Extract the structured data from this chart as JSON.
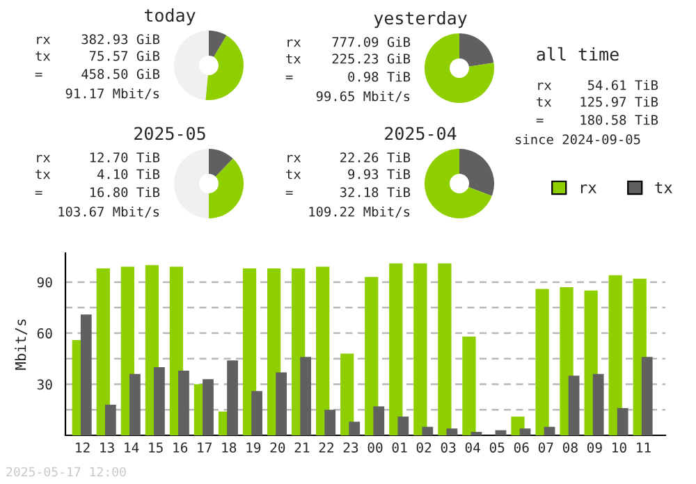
{
  "chart_data": [
    {
      "type": "donut",
      "title": "today",
      "categories": [
        null,
        null,
        null
      ],
      "values": [
        8.5,
        43.0,
        48.5
      ],
      "colors": [
        "#606060",
        "#8fcf00",
        "#f0f0f0"
      ],
      "annotations": [
        "rx",
        "382.93 GiB",
        "tx",
        "75.57 GiB",
        "=",
        "458.50 GiB",
        "91.17 Mbit/s"
      ]
    },
    {
      "type": "donut",
      "title": "yesterday",
      "categories": [
        null,
        null
      ],
      "values": [
        22.5,
        77.5
      ],
      "colors": [
        "#606060",
        "#8fcf00"
      ],
      "annotations": [
        "rx",
        "777.09 GiB",
        "tx",
        "225.23 GiB",
        "=",
        "0.98 TiB",
        "99.65 Mbit/s"
      ]
    },
    {
      "type": "other",
      "title": "all time",
      "annotations": [
        "rx",
        "54.61 TiB",
        "tx",
        "125.97 TiB",
        "=",
        "180.58 TiB",
        "since 2024-09-05"
      ]
    },
    {
      "type": "donut",
      "title": "2025-05",
      "categories": [
        null,
        null,
        null
      ],
      "values": [
        12.2,
        37.8,
        50.0
      ],
      "colors": [
        "#606060",
        "#8fcf00",
        "#f0f0f0"
      ],
      "annotations": [
        "rx",
        "12.70 TiB",
        "tx",
        "4.10 TiB",
        "=",
        "16.80 TiB",
        "103.67 Mbit/s"
      ]
    },
    {
      "type": "donut",
      "title": "2025-04",
      "categories": [
        null,
        null
      ],
      "values": [
        30.8,
        69.2
      ],
      "colors": [
        "#606060",
        "#8fcf00"
      ],
      "annotations": [
        "rx",
        "22.26 TiB",
        "tx",
        "9.93 TiB",
        "=",
        "32.18 TiB",
        "109.22 Mbit/s"
      ]
    },
    {
      "type": "bar",
      "ylabel": "Mbit/s",
      "categories": [
        "12",
        "13",
        "14",
        "15",
        "16",
        "17",
        "18",
        "19",
        "20",
        "21",
        "22",
        "23",
        "00",
        "01",
        "02",
        "03",
        "04",
        "05",
        "06",
        "07",
        "08",
        "09",
        "10",
        "11"
      ],
      "series": [
        {
          "name": "rx",
          "color": "#8fcf00",
          "values": [
            56,
            98,
            99,
            100,
            99,
            30,
            14,
            98,
            98,
            98,
            99,
            48,
            93,
            101,
            101,
            101,
            58,
            0,
            11,
            86,
            87,
            85,
            94,
            92
          ]
        },
        {
          "name": "tx",
          "color": "#606060",
          "values": [
            71,
            18,
            36,
            40,
            38,
            33,
            44,
            26,
            37,
            46,
            15,
            8,
            17,
            11,
            5,
            4,
            2,
            3,
            4,
            5,
            35,
            36,
            16,
            46
          ]
        }
      ],
      "ylim": [
        0,
        107
      ],
      "yticks": [
        {
          "value": 15,
          "label": null
        },
        30,
        {
          "value": 45,
          "label": null
        },
        60,
        {
          "value": 75,
          "label": null
        },
        90
      ],
      "grid": "y",
      "legend": "top right",
      "annotations": [
        "2025-05-17 12:00"
      ]
    }
  ]
}
